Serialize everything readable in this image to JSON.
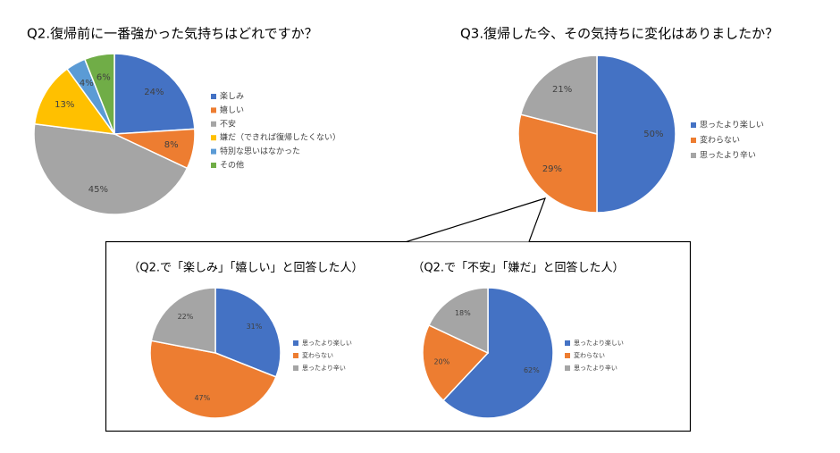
{
  "chart_data": [
    {
      "type": "pie",
      "title": "Q2.復帰前に一番強かった気持ちはどれですか？",
      "categories": [
        "楽しみ",
        "嬉しい",
        "不安",
        "嫌だ（できれば復帰したくない）",
        "特別な思いはなかった",
        "その他"
      ],
      "values": [
        24,
        8,
        45,
        13,
        4,
        6
      ],
      "value_labels": [
        "24%",
        "8%",
        "45%",
        "13%",
        "4%",
        "6%"
      ],
      "colors": [
        "#4472c4",
        "#ed7d31",
        "#a5a5a5",
        "#ffc000",
        "#5b9bd5",
        "#70ad47"
      ],
      "legend": "right"
    },
    {
      "type": "pie",
      "title": "Q3.復帰した今、その気持ちに変化はありましたか？",
      "categories": [
        "思ったより楽しい",
        "変わらない",
        "思ったより辛い"
      ],
      "values": [
        50,
        29,
        21
      ],
      "value_labels": [
        "50%",
        "29%",
        "21%"
      ],
      "colors": [
        "#4472c4",
        "#ed7d31",
        "#a5a5a5"
      ],
      "legend": "right"
    },
    {
      "type": "pie",
      "title": "（Q2.で「楽しみ」「嬉しい」と回答した人）",
      "categories": [
        "思ったより楽しい",
        "変わらない",
        "思ったより辛い"
      ],
      "values": [
        31,
        47,
        22
      ],
      "value_labels": [
        "31%",
        "47%",
        "22%"
      ],
      "colors": [
        "#4472c4",
        "#ed7d31",
        "#a5a5a5"
      ],
      "legend": "right"
    },
    {
      "type": "pie",
      "title": "（Q2.で「不安」「嫌だ」と回答した人）",
      "categories": [
        "思ったより楽しい",
        "変わらない",
        "思ったより辛い"
      ],
      "values": [
        62,
        20,
        18
      ],
      "value_labels": [
        "62%",
        "20%",
        "18%"
      ],
      "colors": [
        "#4472c4",
        "#ed7d31",
        "#a5a5a5"
      ],
      "legend": "right"
    }
  ]
}
